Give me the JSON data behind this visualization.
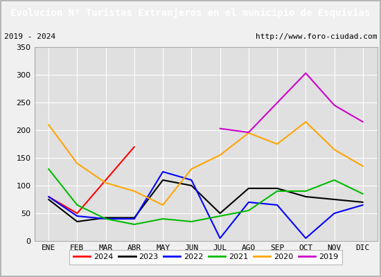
{
  "title": "Evolucion Nº Turistas Extranjeros en el municipio de Esquivias",
  "subtitle_left": "2019 - 2024",
  "subtitle_right": "http://www.foro-ciudad.com",
  "months": [
    "ENE",
    "FEB",
    "MAR",
    "ABR",
    "MAY",
    "JUN",
    "JUL",
    "AGO",
    "SEP",
    "OCT",
    "NOV",
    "DIC"
  ],
  "series": {
    "2024": {
      "color": "#ff0000",
      "data": [
        80,
        50,
        110,
        170,
        null,
        null,
        null,
        null,
        null,
        null,
        null,
        null
      ]
    },
    "2023": {
      "color": "#000000",
      "data": [
        75,
        35,
        42,
        42,
        110,
        100,
        50,
        95,
        95,
        80,
        75,
        70
      ]
    },
    "2022": {
      "color": "#0000ff",
      "data": [
        80,
        45,
        40,
        40,
        125,
        110,
        5,
        70,
        65,
        5,
        50,
        65
      ]
    },
    "2021": {
      "color": "#00bb00",
      "data": [
        130,
        65,
        40,
        30,
        40,
        35,
        45,
        55,
        90,
        90,
        110,
        85
      ]
    },
    "2020": {
      "color": "#ffa500",
      "data": [
        210,
        140,
        105,
        90,
        65,
        130,
        155,
        195,
        175,
        215,
        165,
        135
      ]
    },
    "2019": {
      "color": "#cc00cc",
      "data": [
        null,
        null,
        null,
        null,
        null,
        null,
        203,
        196,
        null,
        303,
        245,
        215
      ]
    }
  },
  "ylim": [
    0,
    350
  ],
  "yticks": [
    0,
    50,
    100,
    150,
    200,
    250,
    300,
    350
  ],
  "title_bg_color": "#4472c4",
  "title_color": "#ffffff",
  "outer_bg": "#f0f0f0",
  "plot_bg_color": "#e0e0e0",
  "grid_color": "#ffffff",
  "border_color": "#aaaaaa",
  "legend_order": [
    "2024",
    "2023",
    "2022",
    "2021",
    "2020",
    "2019"
  ],
  "title_fontsize": 10,
  "subtitle_fontsize": 8,
  "tick_fontsize": 8,
  "legend_fontsize": 8
}
